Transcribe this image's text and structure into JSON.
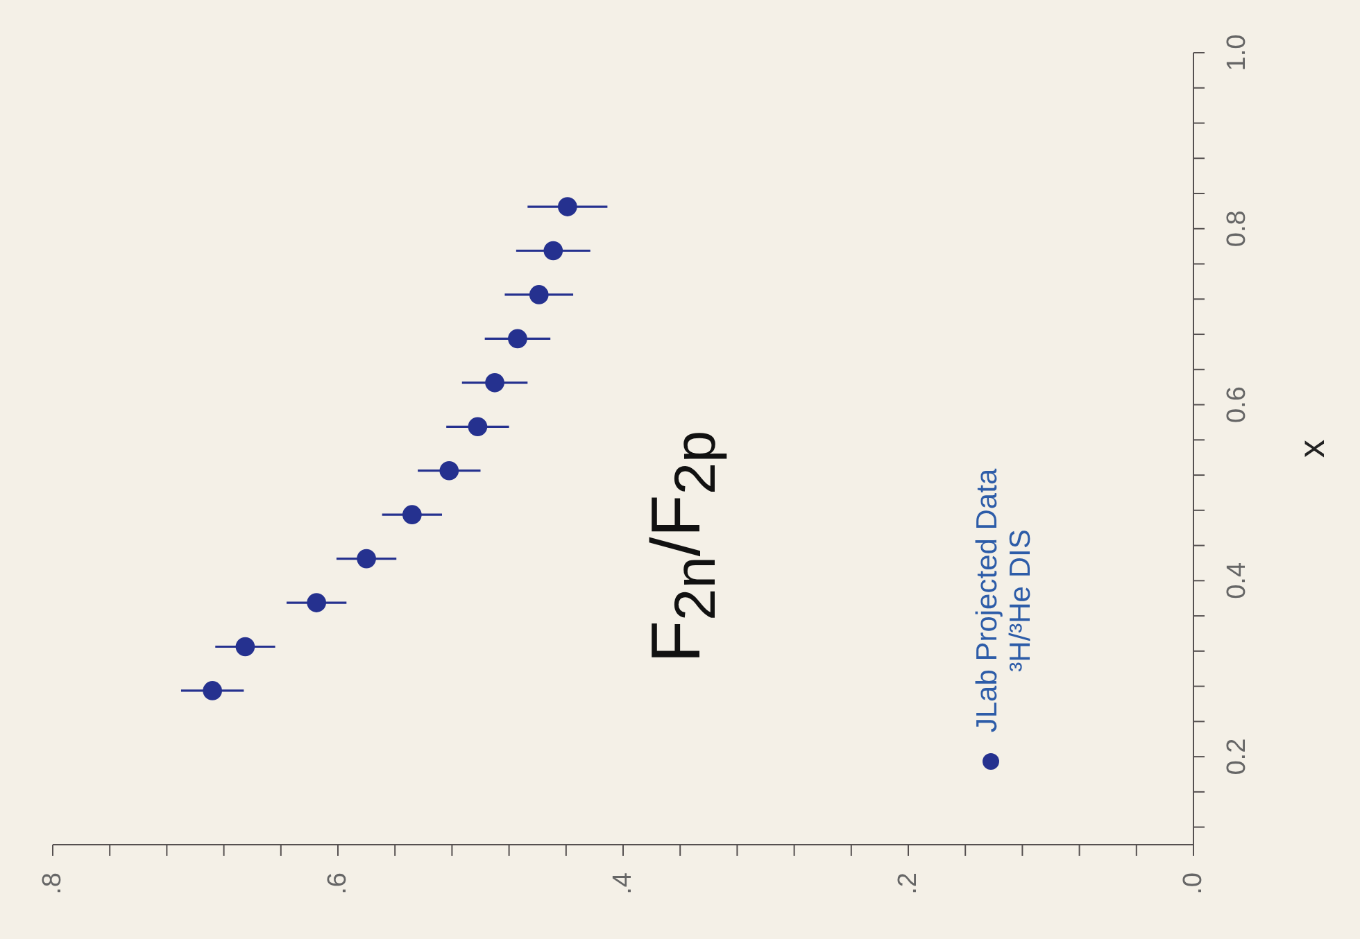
{
  "chart_data": {
    "type": "scatter",
    "ylabel": "x",
    "annotations": [
      "F$_{2n}$/F$_{2p}$"
    ],
    "series": [
      {
        "name": "JLab Projected Data ³H/³He DIS",
        "color": "#25318f",
        "x": [
          0.688,
          0.665,
          0.615,
          0.58,
          0.548,
          0.522,
          0.502,
          0.49,
          0.474,
          0.459,
          0.449,
          0.439
        ],
        "values": [
          0.275,
          0.325,
          0.375,
          0.425,
          0.475,
          0.525,
          0.575,
          0.625,
          0.675,
          0.725,
          0.775,
          0.825
        ],
        "xerrors": [
          0.022,
          0.021,
          0.021,
          0.021,
          0.021,
          0.022,
          0.022,
          0.023,
          0.023,
          0.024,
          0.026,
          0.028
        ]
      }
    ],
    "ylim": [
      0.1,
      1.0
    ],
    "yticks": [
      {
        "value": 0.12,
        "label": null
      },
      {
        "value": 0.16,
        "label": null
      },
      {
        "value": 0.2,
        "label": "0.2"
      },
      {
        "value": 0.24,
        "label": null
      },
      {
        "value": 0.28,
        "label": null
      },
      {
        "value": 0.32,
        "label": null
      },
      {
        "value": 0.36,
        "label": null
      },
      {
        "value": 0.4,
        "label": "0.4"
      },
      {
        "value": 0.44,
        "label": null
      },
      {
        "value": 0.48,
        "label": null
      },
      {
        "value": 0.52,
        "label": null
      },
      {
        "value": 0.56,
        "label": null
      },
      {
        "value": 0.6,
        "label": "0.6"
      },
      {
        "value": 0.64,
        "label": null
      },
      {
        "value": 0.68,
        "label": null
      },
      {
        "value": 0.72,
        "label": null
      },
      {
        "value": 0.76,
        "label": null
      },
      {
        "value": 0.8,
        "label": "0.8"
      },
      {
        "value": 0.84,
        "label": null
      },
      {
        "value": 0.88,
        "label": null
      },
      {
        "value": 0.92,
        "label": null
      },
      {
        "value": 0.96,
        "label": null
      },
      {
        "value": 1.0,
        "label": "1.0"
      }
    ],
    "xlim": [
      0.8,
      0
    ],
    "xticks": [
      {
        "value": 0.8,
        "label": ".8"
      },
      {
        "value": 0.76,
        "label": null
      },
      {
        "value": 0.72,
        "label": null
      },
      {
        "value": 0.68,
        "label": null
      },
      {
        "value": 0.64,
        "label": null
      },
      {
        "value": 0.6,
        "label": ".6"
      },
      {
        "value": 0.56,
        "label": null
      },
      {
        "value": 0.52,
        "label": null
      },
      {
        "value": 0.48,
        "label": null
      },
      {
        "value": 0.44,
        "label": null
      },
      {
        "value": 0.4,
        "label": ".4"
      },
      {
        "value": 0.36,
        "label": null
      },
      {
        "value": 0.32,
        "label": null
      },
      {
        "value": 0.28,
        "label": null
      },
      {
        "value": 0.24,
        "label": null
      },
      {
        "value": 0.2,
        "label": ".2"
      },
      {
        "value": 0.16,
        "label": null
      },
      {
        "value": 0.12,
        "label": null
      },
      {
        "value": 0.08,
        "label": null
      },
      {
        "value": 0.04,
        "label": null
      },
      {
        "value": 0,
        "label": ".0"
      }
    ],
    "marker": "circle",
    "legend": "bottom right"
  }
}
